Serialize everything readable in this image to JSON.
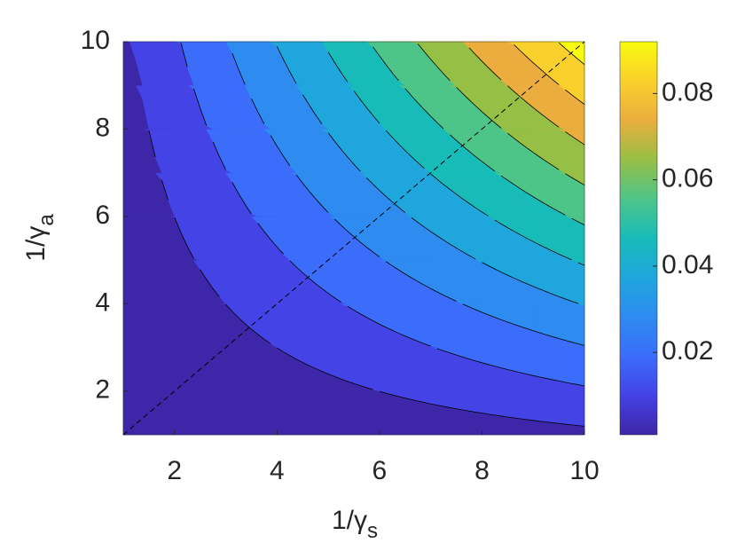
{
  "chart_data": {
    "type": "contour",
    "x_label": "1/γ",
    "x_label_sub": "s",
    "y_label": "1/γ",
    "y_label_sub": "a",
    "x": [
      1,
      2,
      3,
      4,
      5,
      6,
      7,
      8,
      9,
      10
    ],
    "y": [
      1,
      2,
      3,
      4,
      5,
      6,
      7,
      8,
      9,
      10
    ],
    "z": [
      [
        0.00092,
        0.00184,
        0.00276,
        0.00368,
        0.0046,
        0.00552,
        0.00644,
        0.00736,
        0.00828,
        0.0092
      ],
      [
        0.00184,
        0.00368,
        0.00552,
        0.00736,
        0.0092,
        0.01104,
        0.01288,
        0.01472,
        0.01656,
        0.0184
      ],
      [
        0.00276,
        0.00552,
        0.00828,
        0.01104,
        0.0138,
        0.01656,
        0.01932,
        0.02208,
        0.02484,
        0.0276
      ],
      [
        0.00368,
        0.00736,
        0.01104,
        0.01472,
        0.0184,
        0.02208,
        0.02576,
        0.02944,
        0.03312,
        0.0368
      ],
      [
        0.0046,
        0.0092,
        0.0138,
        0.0184,
        0.023,
        0.0276,
        0.0322,
        0.0368,
        0.0414,
        0.046
      ],
      [
        0.00552,
        0.01104,
        0.01656,
        0.02208,
        0.0276,
        0.03312,
        0.03864,
        0.04416,
        0.04968,
        0.0552
      ],
      [
        0.00644,
        0.01288,
        0.01932,
        0.02576,
        0.0322,
        0.03864,
        0.04508,
        0.05152,
        0.05796,
        0.0644
      ],
      [
        0.00736,
        0.01472,
        0.02208,
        0.02944,
        0.0368,
        0.04416,
        0.05152,
        0.05888,
        0.06624,
        0.0736
      ],
      [
        0.00828,
        0.01656,
        0.02484,
        0.03312,
        0.0414,
        0.04968,
        0.05796,
        0.06624,
        0.07452,
        0.0828
      ],
      [
        0.0092,
        0.0184,
        0.0276,
        0.0368,
        0.046,
        0.0552,
        0.0644,
        0.0736,
        0.0828,
        0.092
      ]
    ],
    "levels": [
      0.011,
      0.0195,
      0.028,
      0.0364,
      0.0449,
      0.0534,
      0.0618,
      0.0703,
      0.0788,
      0.0872
    ],
    "colors": [
      "#3e26a8",
      "#4443e6",
      "#3b6cfa",
      "#2e8bf0",
      "#1fa6dd",
      "#17bcb8",
      "#4dc589",
      "#96bf45",
      "#ebae3e",
      "#f9d02c",
      "#f9fb0e"
    ],
    "xlim": [
      1,
      10
    ],
    "ylim": [
      1,
      10
    ],
    "xticks": [
      2,
      4,
      6,
      8,
      10
    ],
    "yticks": [
      2,
      4,
      6,
      8,
      10
    ],
    "clim": [
      0.00092,
      0.092
    ],
    "cticks": [
      0.02,
      0.04,
      0.06,
      0.08
    ],
    "dashed_line": {
      "x": [
        1,
        10
      ],
      "y": [
        1,
        10
      ]
    }
  }
}
